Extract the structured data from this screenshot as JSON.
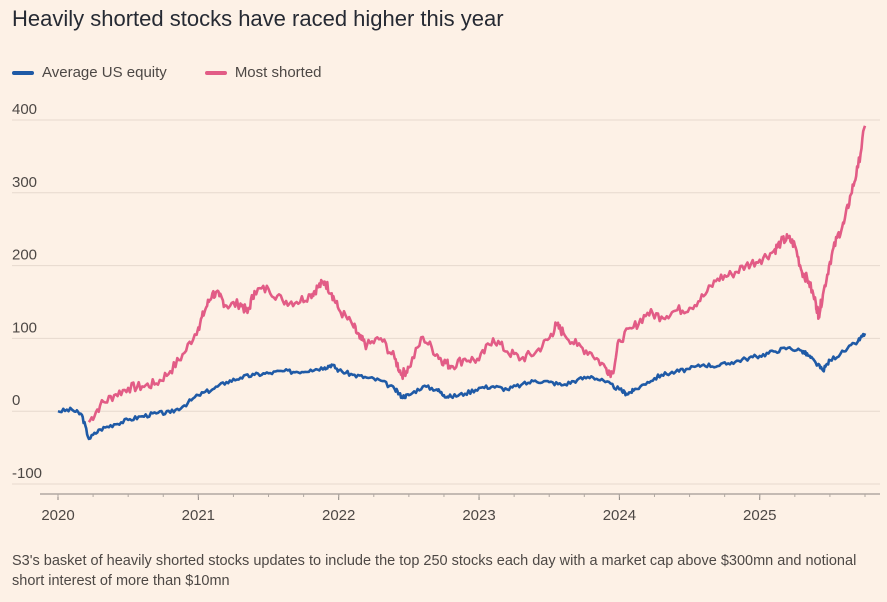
{
  "title": "Heavily shorted stocks have raced higher this year",
  "note": "S3's basket of heavily shorted stocks updates to include the top 250 stocks each day with a market cap above $300mn and notional short interest of more than $10mn",
  "colors": {
    "background": "#fdf1e6",
    "avg": "#1f5aa6",
    "shorted": "#e25c86",
    "grid": "#e6d9ce",
    "axis": "#66605c"
  },
  "chart_data": {
    "type": "line",
    "title": "Heavily shorted stocks have raced higher this year",
    "xlabel": "",
    "ylabel": "",
    "ylim": [
      -100,
      420
    ],
    "yticks": [
      -100,
      0,
      100,
      200,
      300,
      400
    ],
    "xlim": [
      2020.0,
      2025.75
    ],
    "xticks": [
      2020,
      2021,
      2022,
      2023,
      2024,
      2025
    ],
    "xtick_labels": [
      "2020",
      "2021",
      "2022",
      "2023",
      "2024",
      "2025"
    ],
    "grid": true,
    "legend_position": "top-left",
    "series": [
      {
        "name": "Average US equity",
        "color": "#1f5aa6",
        "points": [
          [
            2020.0,
            0
          ],
          [
            2020.1,
            2
          ],
          [
            2020.17,
            -5
          ],
          [
            2020.22,
            -38
          ],
          [
            2020.3,
            -25
          ],
          [
            2020.4,
            -18
          ],
          [
            2020.5,
            -12
          ],
          [
            2020.6,
            -7
          ],
          [
            2020.7,
            -3
          ],
          [
            2020.8,
            -2
          ],
          [
            2020.9,
            8
          ],
          [
            2021.0,
            22
          ],
          [
            2021.1,
            30
          ],
          [
            2021.2,
            40
          ],
          [
            2021.3,
            46
          ],
          [
            2021.4,
            50
          ],
          [
            2021.5,
            52
          ],
          [
            2021.6,
            55
          ],
          [
            2021.7,
            54
          ],
          [
            2021.8,
            57
          ],
          [
            2021.9,
            60
          ],
          [
            2021.95,
            64
          ],
          [
            2022.0,
            56
          ],
          [
            2022.1,
            50
          ],
          [
            2022.2,
            46
          ],
          [
            2022.3,
            42
          ],
          [
            2022.4,
            30
          ],
          [
            2022.45,
            20
          ],
          [
            2022.5,
            22
          ],
          [
            2022.6,
            34
          ],
          [
            2022.7,
            30
          ],
          [
            2022.75,
            22
          ],
          [
            2022.8,
            20
          ],
          [
            2022.9,
            24
          ],
          [
            2023.0,
            32
          ],
          [
            2023.1,
            34
          ],
          [
            2023.2,
            30
          ],
          [
            2023.3,
            36
          ],
          [
            2023.4,
            42
          ],
          [
            2023.5,
            40
          ],
          [
            2023.6,
            36
          ],
          [
            2023.7,
            43
          ],
          [
            2023.8,
            48
          ],
          [
            2023.9,
            40
          ],
          [
            2024.0,
            30
          ],
          [
            2024.05,
            24
          ],
          [
            2024.1,
            28
          ],
          [
            2024.2,
            40
          ],
          [
            2024.3,
            50
          ],
          [
            2024.4,
            54
          ],
          [
            2024.5,
            58
          ],
          [
            2024.6,
            64
          ],
          [
            2024.7,
            62
          ],
          [
            2024.8,
            67
          ],
          [
            2024.9,
            72
          ],
          [
            2025.0,
            76
          ],
          [
            2025.1,
            82
          ],
          [
            2025.2,
            87
          ],
          [
            2025.3,
            83
          ],
          [
            2025.35,
            76
          ],
          [
            2025.4,
            66
          ],
          [
            2025.45,
            56
          ],
          [
            2025.5,
            70
          ],
          [
            2025.6,
            82
          ],
          [
            2025.7,
            96
          ],
          [
            2025.75,
            107
          ]
        ]
      },
      {
        "name": "Most shorted",
        "color": "#e25c86",
        "points": [
          [
            2020.22,
            -15
          ],
          [
            2020.3,
            8
          ],
          [
            2020.4,
            22
          ],
          [
            2020.5,
            32
          ],
          [
            2020.6,
            34
          ],
          [
            2020.7,
            38
          ],
          [
            2020.8,
            55
          ],
          [
            2020.9,
            80
          ],
          [
            2021.0,
            115
          ],
          [
            2021.05,
            140
          ],
          [
            2021.1,
            162
          ],
          [
            2021.15,
            158
          ],
          [
            2021.2,
            145
          ],
          [
            2021.3,
            148
          ],
          [
            2021.35,
            135
          ],
          [
            2021.4,
            165
          ],
          [
            2021.5,
            168
          ],
          [
            2021.6,
            152
          ],
          [
            2021.7,
            150
          ],
          [
            2021.8,
            160
          ],
          [
            2021.85,
            170
          ],
          [
            2021.9,
            178
          ],
          [
            2021.95,
            162
          ],
          [
            2022.0,
            140
          ],
          [
            2022.1,
            118
          ],
          [
            2022.15,
            100
          ],
          [
            2022.2,
            90
          ],
          [
            2022.3,
            100
          ],
          [
            2022.4,
            72
          ],
          [
            2022.45,
            50
          ],
          [
            2022.5,
            60
          ],
          [
            2022.6,
            102
          ],
          [
            2022.7,
            78
          ],
          [
            2022.75,
            68
          ],
          [
            2022.8,
            62
          ],
          [
            2022.9,
            72
          ],
          [
            2023.0,
            70
          ],
          [
            2023.1,
            100
          ],
          [
            2023.2,
            82
          ],
          [
            2023.3,
            72
          ],
          [
            2023.4,
            80
          ],
          [
            2023.5,
            100
          ],
          [
            2023.55,
            118
          ],
          [
            2023.6,
            108
          ],
          [
            2023.7,
            90
          ],
          [
            2023.8,
            80
          ],
          [
            2023.9,
            60
          ],
          [
            2023.95,
            52
          ],
          [
            2024.0,
            98
          ],
          [
            2024.1,
            115
          ],
          [
            2024.2,
            135
          ],
          [
            2024.3,
            130
          ],
          [
            2024.4,
            138
          ],
          [
            2024.5,
            142
          ],
          [
            2024.6,
            158
          ],
          [
            2024.7,
            182
          ],
          [
            2024.8,
            188
          ],
          [
            2024.9,
            200
          ],
          [
            2025.0,
            208
          ],
          [
            2025.1,
            220
          ],
          [
            2025.15,
            232
          ],
          [
            2025.2,
            238
          ],
          [
            2025.25,
            228
          ],
          [
            2025.3,
            192
          ],
          [
            2025.35,
            178
          ],
          [
            2025.4,
            148
          ],
          [
            2025.42,
            132
          ],
          [
            2025.45,
            160
          ],
          [
            2025.5,
            205
          ],
          [
            2025.55,
            238
          ],
          [
            2025.6,
            258
          ],
          [
            2025.65,
            298
          ],
          [
            2025.7,
            335
          ],
          [
            2025.75,
            392
          ]
        ]
      }
    ]
  }
}
